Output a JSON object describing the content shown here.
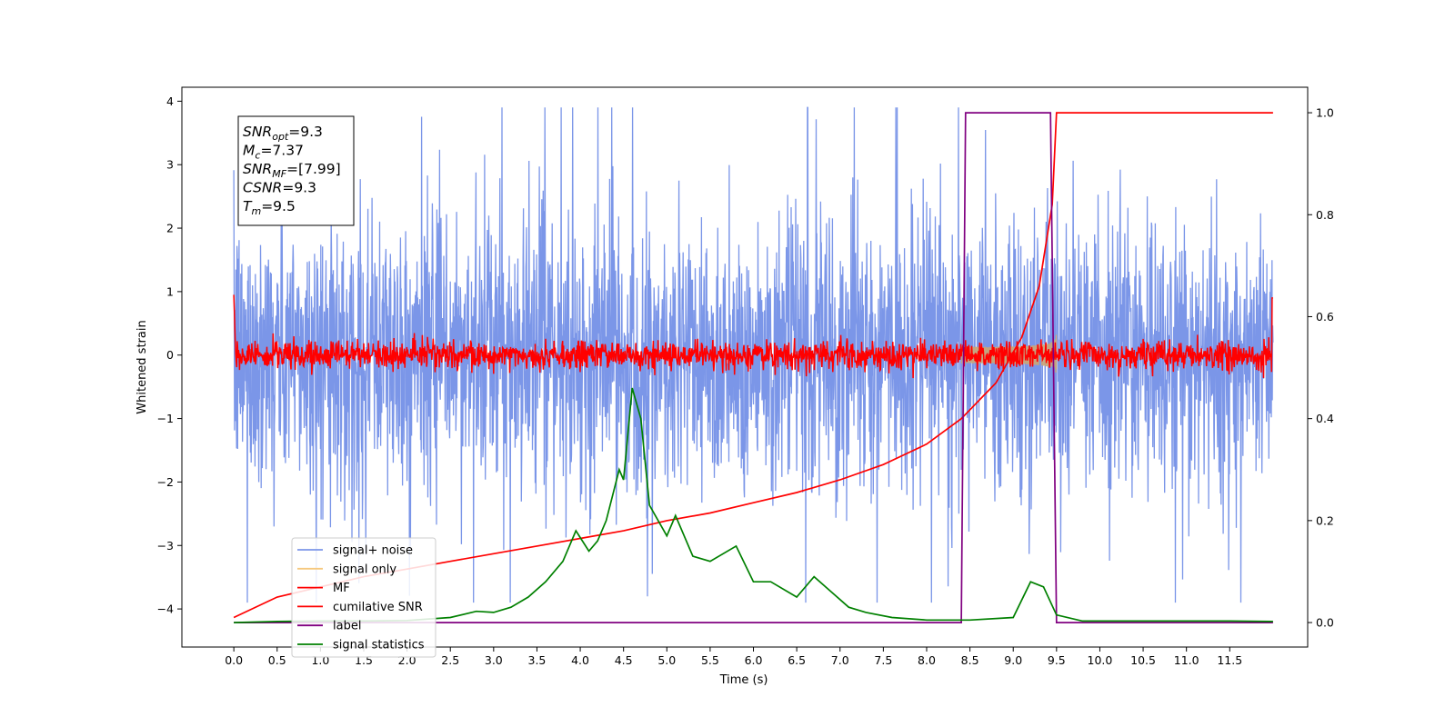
{
  "chart_data": {
    "type": "line",
    "xlabel": "Time (s)",
    "ylabel": "Whitened strain",
    "xlim": [
      -0.6,
      12.4
    ],
    "ylim": [
      -4.6,
      4.22
    ],
    "y2lim": [
      -0.048,
      1.05
    ],
    "xticks": [
      "0.0",
      "0.5",
      "1.0",
      "1.5",
      "2.0",
      "2.5",
      "3.0",
      "3.5",
      "4.0",
      "4.5",
      "5.0",
      "5.5",
      "6.0",
      "6.5",
      "7.0",
      "7.5",
      "8.0",
      "8.5",
      "9.0",
      "9.5",
      "10.0",
      "10.5",
      "11.0",
      "11.5"
    ],
    "yticks": [
      "−4",
      "−3",
      "−2",
      "−1",
      "0",
      "1",
      "2",
      "3",
      "4"
    ],
    "y2ticks": [
      "0.0",
      "0.2",
      "0.4",
      "0.6",
      "0.8",
      "1.0"
    ],
    "legend_position": "lower left",
    "annotation": {
      "lines": [
        {
          "base": "SNR",
          "sub": "opt",
          "value": "=9.3"
        },
        {
          "base": "M",
          "sub": "c",
          "value": "=7.37"
        },
        {
          "base": "SNR",
          "sub": "MF",
          "value": "=[7.99]"
        },
        {
          "base": "CSNR",
          "sub": "",
          "value": "=9.3"
        },
        {
          "base": "T",
          "sub": "m",
          "value": "=9.5"
        }
      ]
    },
    "series": [
      {
        "name": "signal+ noise",
        "color": "#7b96e8",
        "axis": "left",
        "noise_amplitude": 3.5,
        "time_range": [
          0,
          12
        ]
      },
      {
        "name": "signal only",
        "color": "#f6c87e",
        "axis": "left",
        "merger_time": 9.5,
        "start_time": 8.4,
        "peak_amplitude": 1.1
      },
      {
        "name": "MF",
        "color": "#ff0000",
        "axis": "left",
        "noise_amplitude": 0.3,
        "time_range": [
          0,
          12
        ]
      },
      {
        "name": "cumilative SNR",
        "color": "#ff0000",
        "axis": "right",
        "x": [
          0.0,
          0.5,
          1.0,
          1.5,
          2.0,
          2.5,
          3.0,
          3.5,
          4.0,
          4.5,
          5.0,
          5.5,
          6.0,
          6.5,
          7.0,
          7.5,
          8.0,
          8.4,
          8.8,
          9.1,
          9.3,
          9.45,
          9.5,
          12.0
        ],
        "y": [
          0.01,
          0.05,
          0.07,
          0.09,
          0.105,
          0.12,
          0.135,
          0.15,
          0.165,
          0.18,
          0.2,
          0.215,
          0.235,
          0.255,
          0.28,
          0.31,
          0.35,
          0.4,
          0.47,
          0.56,
          0.66,
          0.82,
          1.0,
          1.0
        ]
      },
      {
        "name": "label",
        "color": "#800080",
        "axis": "right",
        "x": [
          0.0,
          8.4,
          8.45,
          8.5,
          9.43,
          9.5,
          12.0
        ],
        "y": [
          0.0,
          0.0,
          1.0,
          1.0,
          1.0,
          0.0,
          0.0
        ]
      },
      {
        "name": "signal statistics",
        "color": "#008000",
        "axis": "right",
        "x": [
          0.0,
          0.5,
          1.0,
          1.5,
          2.0,
          2.5,
          2.8,
          3.0,
          3.2,
          3.4,
          3.6,
          3.8,
          3.95,
          4.1,
          4.2,
          4.3,
          4.45,
          4.5,
          4.6,
          4.7,
          4.8,
          5.0,
          5.1,
          5.3,
          5.5,
          5.8,
          6.0,
          6.2,
          6.5,
          6.7,
          6.9,
          7.1,
          7.3,
          7.6,
          8.0,
          8.5,
          9.0,
          9.2,
          9.35,
          9.5,
          9.8,
          10.5,
          11.5,
          12.0
        ],
        "y": [
          0.0,
          0.002,
          0.003,
          0.003,
          0.004,
          0.01,
          0.022,
          0.02,
          0.03,
          0.05,
          0.08,
          0.12,
          0.18,
          0.14,
          0.16,
          0.2,
          0.3,
          0.28,
          0.46,
          0.4,
          0.23,
          0.17,
          0.21,
          0.13,
          0.12,
          0.15,
          0.08,
          0.08,
          0.05,
          0.09,
          0.06,
          0.03,
          0.02,
          0.01,
          0.005,
          0.005,
          0.01,
          0.08,
          0.07,
          0.015,
          0.003,
          0.003,
          0.003,
          0.002
        ]
      }
    ]
  }
}
